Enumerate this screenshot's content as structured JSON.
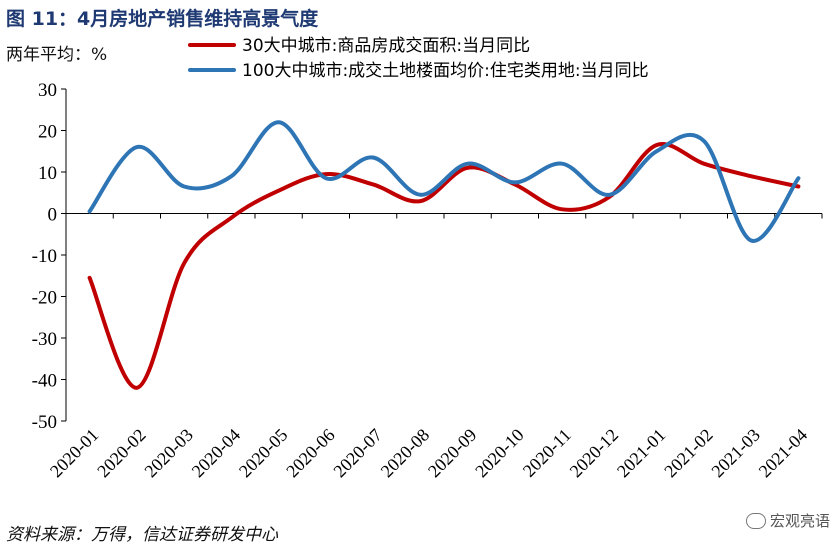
{
  "figure": {
    "title": "图 11：4月房地产销售维持高景气度",
    "unit": "两年平均：%",
    "source": "资料来源：万得，信达证券研发中心",
    "watermark": "宏观亮语"
  },
  "colors": {
    "series_0": "#c00000",
    "series_1": "#2e75b6",
    "axis": "#000000"
  },
  "chart_data": {
    "type": "line",
    "categories": [
      "2020-01",
      "2020-02",
      "2020-03",
      "2020-04",
      "2020-05",
      "2020-06",
      "2020-07",
      "2020-08",
      "2020-09",
      "2020-10",
      "2020-11",
      "2020-12",
      "2021-01",
      "2021-02",
      "2021-03",
      "2021-04"
    ],
    "series": [
      {
        "name": "30大中城市:商品房成交面积:当月同比",
        "values": [
          -15.5,
          -42,
          -12,
          -1,
          5.5,
          9.5,
          7,
          3,
          11,
          7,
          1,
          4,
          16.5,
          12,
          9,
          6.5
        ]
      },
      {
        "name": "100大中城市:成交土地楼面均价:住宅类用地:当月同比",
        "values": [
          0.5,
          16,
          6.5,
          9,
          22,
          8.5,
          13.5,
          4.5,
          12,
          7.5,
          12,
          4.5,
          15,
          17.5,
          -6.5,
          8.5
        ]
      }
    ],
    "yticks": [
      30,
      20,
      10,
      0,
      -10,
      -20,
      -30,
      -40,
      -50
    ],
    "ylim": [
      -50,
      30
    ],
    "grid": false,
    "legend": "top"
  }
}
